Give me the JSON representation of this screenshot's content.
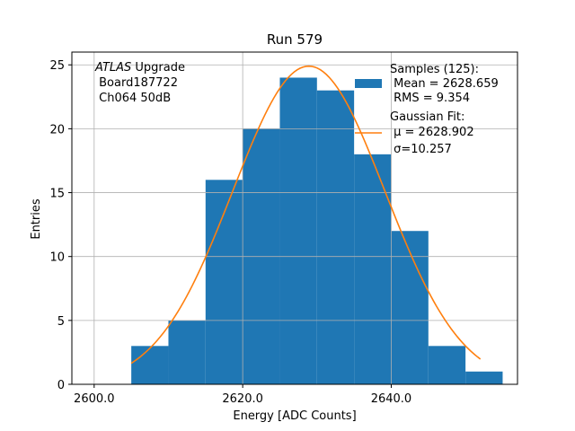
{
  "chart_data": {
    "type": "bar",
    "title": "Run 579",
    "xlabel": "Energy [ADC Counts]",
    "ylabel": "Entries",
    "xlim": [
      2597,
      2657
    ],
    "ylim": [
      0,
      26
    ],
    "grid": true,
    "x_ticks": [
      2600,
      2620,
      2640
    ],
    "x_tick_labels": [
      "2600.0",
      "2620.0",
      "2640.0"
    ],
    "y_ticks": [
      0,
      5,
      10,
      15,
      20,
      25
    ],
    "y_tick_labels": [
      "0",
      "5",
      "10",
      "15",
      "20",
      "25"
    ],
    "bin_edges": [
      2605,
      2610,
      2615,
      2620,
      2625,
      2630,
      2635,
      2640,
      2645,
      2650,
      2655
    ],
    "values": [
      3,
      5,
      16,
      20,
      24,
      23,
      18,
      12,
      3,
      1
    ],
    "bar_color": "#1f77b4",
    "fit": {
      "type": "gaussian",
      "amplitude": 24.9,
      "mu": 2628.902,
      "sigma": 10.257,
      "x_range": [
        2605,
        2652
      ],
      "color": "#ff7f0e"
    },
    "annotation": {
      "line1_italic": "ATLAS",
      "line1_rest": " Upgrade",
      "line2": " Board187722",
      "line3": " Ch064 50dB"
    },
    "legend": {
      "placement": "top-right",
      "hist_lines": [
        "Samples (125):",
        " Mean = 2628.659",
        " RMS = 9.354"
      ],
      "fit_lines": [
        "Gaussian Fit:",
        " μ = 2628.902",
        " σ=10.257"
      ]
    }
  }
}
